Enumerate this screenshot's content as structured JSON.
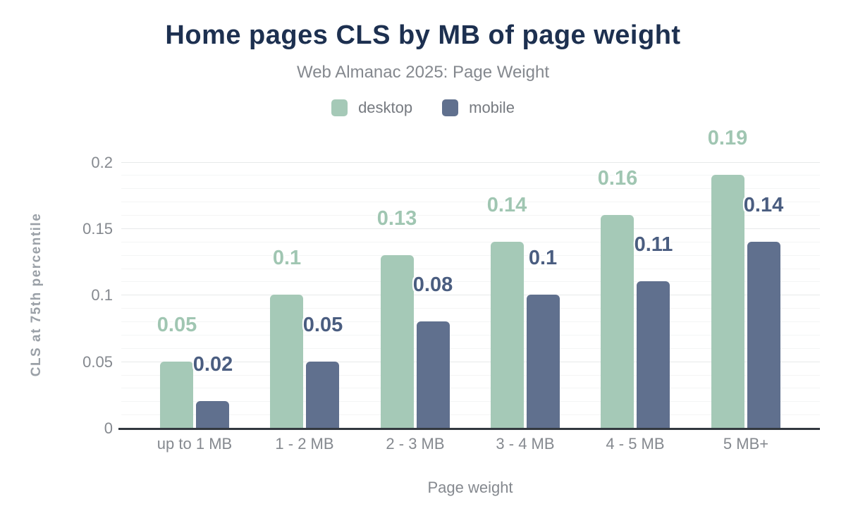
{
  "chart_data": {
    "type": "bar",
    "title": "Home pages CLS by MB of page weight",
    "subtitle": "Web Almanac 2025: Page Weight",
    "xlabel": "Page weight",
    "ylabel": "CLS at 75th percentile",
    "categories": [
      "up to 1 MB",
      "1 - 2 MB",
      "2 - 3 MB",
      "3 - 4 MB",
      "4 - 5 MB",
      "5 MB+"
    ],
    "series": [
      {
        "name": "desktop",
        "values": [
          0.05,
          0.1,
          0.13,
          0.14,
          0.16,
          0.19
        ],
        "labels": [
          "0.05",
          "0.1",
          "0.13",
          "0.14",
          "0.16",
          "0.19"
        ],
        "color": "#a5c9b7",
        "label_color": "#a0c6b2"
      },
      {
        "name": "mobile",
        "values": [
          0.02,
          0.05,
          0.08,
          0.1,
          0.11,
          0.14
        ],
        "labels": [
          "0.02",
          "0.05",
          "0.08",
          "0.1",
          "0.11",
          "0.14"
        ],
        "color": "#60708e",
        "label_color": "#4a5d80"
      }
    ],
    "ylim": [
      0,
      0.2
    ],
    "yticks": [
      0,
      0.05,
      0.1,
      0.15,
      0.2
    ],
    "ytick_labels": [
      "0",
      "0.05",
      "0.1",
      "0.15",
      "0.2"
    ],
    "grid": {
      "major_step": 0.05,
      "minor_step": 0.01,
      "visible": true
    },
    "legend_position": "top",
    "colors": {
      "title": "#1d3050",
      "subtitle_text": "#84888e",
      "axis_text": "#85898f",
      "axis_line": "#32383f",
      "major_grid": "#e7e9ea",
      "minor_grid": "#f4f5f5"
    }
  }
}
